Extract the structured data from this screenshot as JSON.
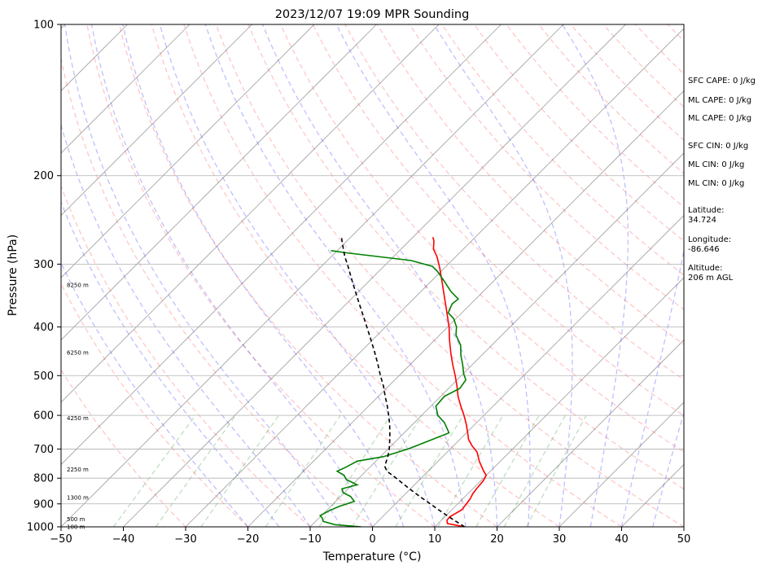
{
  "chart_data": {
    "type": "line",
    "title": "2023/12/07 19:09 MPR Sounding",
    "xlabel": "Temperature (°C)",
    "ylabel": "Pressure (hPa)",
    "xlim": [
      -50,
      50
    ],
    "ylim": [
      1000,
      100
    ],
    "y_scale": "log",
    "skew": "skew-T",
    "grid": true,
    "x_ticks": [
      "−50",
      "−40",
      "−30",
      "−20",
      "−10",
      "0",
      "10",
      "20",
      "30",
      "40",
      "50"
    ],
    "y_ticks": [
      {
        "p": 100,
        "label": "100"
      },
      {
        "p": 200,
        "label": "200"
      },
      {
        "p": 300,
        "label": "300"
      },
      {
        "p": 400,
        "label": "400"
      },
      {
        "p": 500,
        "label": "500"
      },
      {
        "p": 600,
        "label": "600"
      },
      {
        "p": 700,
        "label": "700"
      },
      {
        "p": 800,
        "label": "800"
      },
      {
        "p": 900,
        "label": "900"
      },
      {
        "p": 1000,
        "label": "1000"
      }
    ],
    "series": [
      {
        "key": "temperature",
        "color": "#ff0000",
        "points": [
          [
            1000,
            14.8
          ],
          [
            985,
            11.5
          ],
          [
            970,
            10.9
          ],
          [
            955,
            10.8
          ],
          [
            940,
            11.2
          ],
          [
            925,
            11.6
          ],
          [
            900,
            11.4
          ],
          [
            880,
            11.2
          ],
          [
            860,
            10.8
          ],
          [
            840,
            10.6
          ],
          [
            810,
            10.4
          ],
          [
            790,
            10.0
          ],
          [
            770,
            8.6
          ],
          [
            740,
            6.6
          ],
          [
            710,
            4.8
          ],
          [
            690,
            3.0
          ],
          [
            670,
            1.4
          ],
          [
            650,
            0.2
          ],
          [
            625,
            -1.4
          ],
          [
            600,
            -3.2
          ],
          [
            575,
            -5.2
          ],
          [
            550,
            -7.2
          ],
          [
            525,
            -9.0
          ],
          [
            500,
            -11.0
          ],
          [
            475,
            -13.2
          ],
          [
            450,
            -15.4
          ],
          [
            425,
            -17.6
          ],
          [
            400,
            -19.8
          ],
          [
            375,
            -22.4
          ],
          [
            350,
            -25.2
          ],
          [
            325,
            -28.2
          ],
          [
            305,
            -30.8
          ],
          [
            290,
            -33.0
          ],
          [
            280,
            -34.8
          ],
          [
            270,
            -36.0
          ],
          [
            265,
            -36.8
          ]
        ]
      },
      {
        "key": "dewpoint",
        "color": "#008000",
        "points": [
          [
            1000,
            -1.8
          ],
          [
            990,
            -6.4
          ],
          [
            975,
            -8.8
          ],
          [
            960,
            -9.5
          ],
          [
            950,
            -10.2
          ],
          [
            930,
            -9.6
          ],
          [
            910,
            -8.6
          ],
          [
            890,
            -7.0
          ],
          [
            870,
            -8.4
          ],
          [
            855,
            -10.2
          ],
          [
            840,
            -11.0
          ],
          [
            825,
            -9.2
          ],
          [
            805,
            -11.8
          ],
          [
            790,
            -12.8
          ],
          [
            775,
            -14.6
          ],
          [
            760,
            -13.8
          ],
          [
            740,
            -13.0
          ],
          [
            725,
            -9.5
          ],
          [
            700,
            -6.8
          ],
          [
            675,
            -4.8
          ],
          [
            650,
            -2.8
          ],
          [
            620,
            -5.2
          ],
          [
            600,
            -7.4
          ],
          [
            575,
            -9.2
          ],
          [
            550,
            -9.4
          ],
          [
            530,
            -8.2
          ],
          [
            510,
            -8.6
          ],
          [
            495,
            -10.0
          ],
          [
            475,
            -11.6
          ],
          [
            455,
            -13.4
          ],
          [
            435,
            -15.0
          ],
          [
            415,
            -17.4
          ],
          [
            400,
            -18.6
          ],
          [
            385,
            -20.4
          ],
          [
            375,
            -22.2
          ],
          [
            360,
            -23.0
          ],
          [
            352,
            -22.8
          ],
          [
            340,
            -25.2
          ],
          [
            325,
            -27.8
          ],
          [
            310,
            -30.6
          ],
          [
            303,
            -32.2
          ],
          [
            295,
            -36.6
          ],
          [
            285,
            -48.0
          ],
          [
            282,
            -51.0
          ]
        ]
      },
      {
        "key": "parcel",
        "color": "#000000",
        "points": [
          [
            1000,
            14.8
          ],
          [
            975,
            12.5
          ],
          [
            950,
            10.2
          ],
          [
            925,
            7.9
          ],
          [
            900,
            5.6
          ],
          [
            875,
            3.2
          ],
          [
            850,
            0.8
          ],
          [
            825,
            -1.6
          ],
          [
            800,
            -4.0
          ],
          [
            775,
            -6.6
          ],
          [
            760,
            -7.6
          ],
          [
            750,
            -8.0
          ],
          [
            725,
            -8.8
          ],
          [
            700,
            -9.8
          ],
          [
            675,
            -11.0
          ],
          [
            650,
            -12.3
          ],
          [
            625,
            -13.7
          ],
          [
            600,
            -15.3
          ],
          [
            575,
            -17.0
          ],
          [
            550,
            -18.9
          ],
          [
            525,
            -20.8
          ],
          [
            500,
            -23.0
          ],
          [
            475,
            -25.2
          ],
          [
            450,
            -27.6
          ],
          [
            425,
            -30.2
          ],
          [
            400,
            -33.0
          ],
          [
            375,
            -36.0
          ],
          [
            350,
            -39.2
          ],
          [
            325,
            -42.6
          ],
          [
            300,
            -46.2
          ],
          [
            290,
            -47.8
          ],
          [
            275,
            -50.0
          ],
          [
            265,
            -51.5
          ]
        ]
      }
    ],
    "reference_lines": {
      "dry_adiabats": "#ff0000",
      "moist_adiabats": "#0000ff",
      "mixing_ratio": "#008000",
      "isotherms": "#808080"
    },
    "height_labels": [
      {
        "p": 1000,
        "label": "100 m"
      },
      {
        "p": 965,
        "label": "500 m"
      },
      {
        "p": 875,
        "label": "1300 m"
      },
      {
        "p": 768,
        "label": "2250 m"
      },
      {
        "p": 608,
        "label": "4250 m"
      },
      {
        "p": 450,
        "label": "6250 m"
      },
      {
        "p": 330,
        "label": "8250 m"
      }
    ]
  },
  "side_panel": [
    "SFC CAPE: 0 J/kg",
    "ML CAPE: 0 J/kg",
    "ML CAPE: 0 J/kg",
    "SFC CIN: 0 J/kg",
    "ML CIN: 0 J/kg",
    "ML CIN: 0 J/kg",
    "Latitude:",
    "34.724",
    "Longitude:",
    "-86.646",
    "Altitude:",
    "206 m AGL"
  ]
}
